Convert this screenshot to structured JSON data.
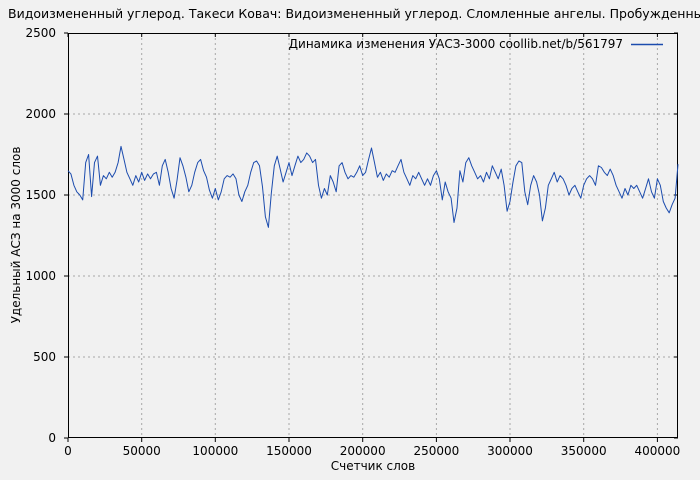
{
  "window": {
    "background_color": "#f1f1f1"
  },
  "colors": {
    "line": "#1c4cae",
    "grid": "#a8a8a8",
    "axis": "#000000",
    "text": "#000000"
  },
  "chart_data": {
    "type": "line",
    "title": "Видоизмененный углерод. Такеси Ковач: Видоизмененный углерод. Сломленные ангелы. Пробужденные фурии (Ричард Мо",
    "legend": "Динамика изменения УАСЗ-3000 coollib.net/b/561797",
    "legend_position": "top-right-inside",
    "xlabel": "Счетчик слов",
    "ylabel": "Удельный АСЗ на 3000 слов",
    "xlim": [
      0,
      414000
    ],
    "ylim": [
      0,
      2500
    ],
    "x_ticks": [
      0,
      50000,
      100000,
      150000,
      200000,
      250000,
      300000,
      350000,
      400000
    ],
    "y_ticks": [
      0,
      500,
      1000,
      1500,
      2000,
      2500
    ],
    "grid": true,
    "grid_style": "dashed",
    "line_color": "#1c4cae",
    "x_start": 0,
    "x_step": 2000,
    "values": [
      1650,
      1630,
      1560,
      1520,
      1500,
      1470,
      1700,
      1750,
      1490,
      1700,
      1740,
      1560,
      1620,
      1600,
      1640,
      1610,
      1640,
      1700,
      1800,
      1720,
      1640,
      1600,
      1560,
      1620,
      1580,
      1640,
      1590,
      1630,
      1600,
      1630,
      1640,
      1560,
      1680,
      1720,
      1640,
      1540,
      1480,
      1590,
      1730,
      1680,
      1610,
      1520,
      1560,
      1640,
      1700,
      1720,
      1650,
      1610,
      1530,
      1480,
      1540,
      1470,
      1520,
      1600,
      1620,
      1610,
      1630,
      1600,
      1500,
      1460,
      1520,
      1560,
      1640,
      1700,
      1710,
      1680,
      1550,
      1365,
      1300,
      1510,
      1680,
      1740,
      1660,
      1580,
      1640,
      1700,
      1620,
      1680,
      1740,
      1700,
      1720,
      1760,
      1740,
      1700,
      1720,
      1560,
      1480,
      1540,
      1500,
      1620,
      1580,
      1520,
      1680,
      1700,
      1640,
      1600,
      1620,
      1610,
      1640,
      1680,
      1620,
      1640,
      1720,
      1790,
      1700,
      1610,
      1640,
      1590,
      1630,
      1610,
      1650,
      1640,
      1680,
      1720,
      1640,
      1600,
      1560,
      1620,
      1600,
      1640,
      1600,
      1560,
      1600,
      1560,
      1620,
      1650,
      1600,
      1470,
      1580,
      1520,
      1480,
      1330,
      1420,
      1650,
      1580,
      1700,
      1730,
      1680,
      1640,
      1600,
      1620,
      1580,
      1640,
      1600,
      1680,
      1640,
      1600,
      1660,
      1560,
      1400,
      1460,
      1580,
      1680,
      1710,
      1700,
      1520,
      1440,
      1560,
      1620,
      1580,
      1500,
      1340,
      1420,
      1560,
      1600,
      1640,
      1580,
      1620,
      1600,
      1560,
      1500,
      1540,
      1560,
      1520,
      1480,
      1560,
      1600,
      1620,
      1600,
      1560,
      1680,
      1670,
      1640,
      1620,
      1660,
      1620,
      1560,
      1520,
      1480,
      1540,
      1500,
      1560,
      1540,
      1560,
      1520,
      1480,
      1540,
      1600,
      1520,
      1480,
      1600,
      1560,
      1460,
      1420,
      1390,
      1440,
      1480,
      1690
    ]
  }
}
